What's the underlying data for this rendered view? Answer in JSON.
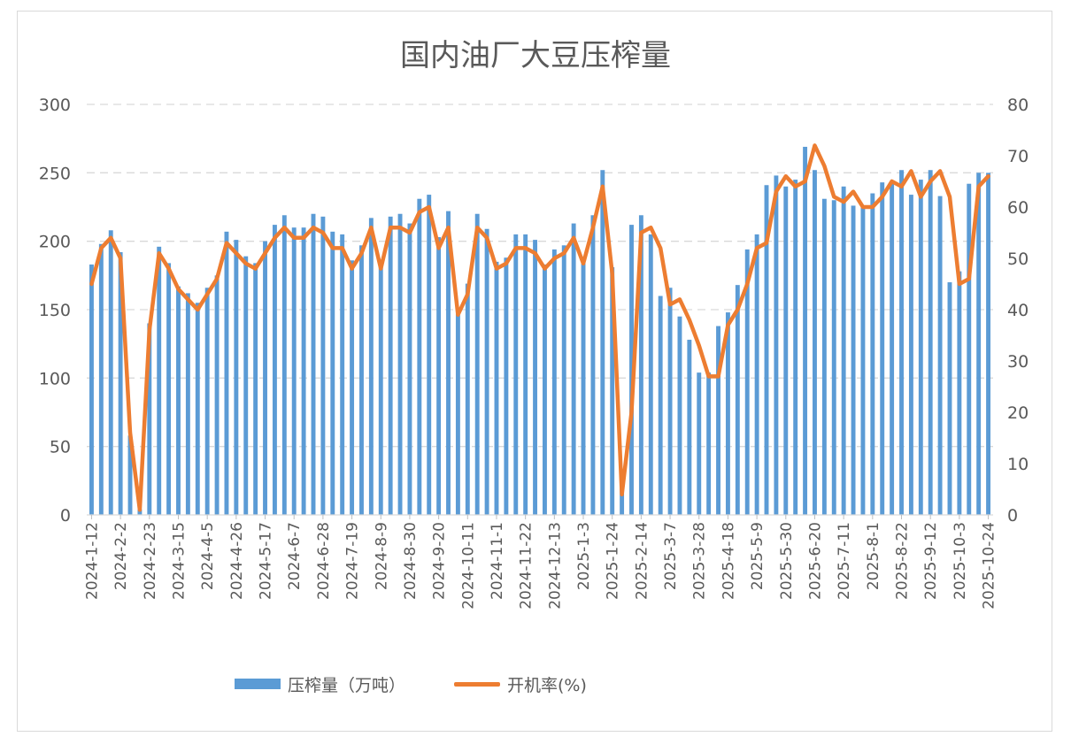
{
  "chart_data": {
    "type": "bar+line",
    "title": "国内油厂大豆压榨量",
    "categories": [
      "2024-1-12",
      "2024-1-19",
      "2024-1-26",
      "2024-2-2",
      "2024-2-9",
      "2024-2-16",
      "2024-2-23",
      "2024-3-1",
      "2024-3-8",
      "2024-3-15",
      "2024-3-22",
      "2024-3-29",
      "2024-4-5",
      "2024-4-12",
      "2024-4-19",
      "2024-4-26",
      "2024-5-3",
      "2024-5-10",
      "2024-5-17",
      "2024-5-24",
      "2024-5-31",
      "2024-6-7",
      "2024-6-14",
      "2024-6-21",
      "2024-6-28",
      "2024-7-5",
      "2024-7-12",
      "2024-7-19",
      "2024-7-26",
      "2024-8-2",
      "2024-8-9",
      "2024-8-16",
      "2024-8-23",
      "2024-8-30",
      "2024-9-6",
      "2024-9-13",
      "2024-9-20",
      "2024-9-27",
      "2024-10-4",
      "2024-10-11",
      "2024-10-18",
      "2024-10-25",
      "2024-11-1",
      "2024-11-8",
      "2024-11-15",
      "2024-11-22",
      "2024-11-29",
      "2024-12-6",
      "2024-12-13",
      "2024-12-20",
      "2024-12-27",
      "2025-1-3",
      "2025-1-10",
      "2025-1-17",
      "2025-1-24",
      "2025-1-31",
      "2025-2-7",
      "2025-2-14",
      "2025-2-21",
      "2025-2-28",
      "2025-3-7",
      "2025-3-14",
      "2025-3-21",
      "2025-3-28",
      "2025-4-4",
      "2025-4-11",
      "2025-4-18",
      "2025-4-25",
      "2025-5-2",
      "2025-5-9",
      "2025-5-16",
      "2025-5-23",
      "2025-5-30",
      "2025-6-6",
      "2025-6-13",
      "2025-6-20",
      "2025-6-27",
      "2025-7-4",
      "2025-7-11",
      "2025-7-18",
      "2025-7-25",
      "2025-8-1",
      "2025-8-8",
      "2025-8-15",
      "2025-8-22",
      "2025-8-29",
      "2025-9-5",
      "2025-9-12",
      "2025-9-19",
      "2025-9-26",
      "2025-10-3",
      "2025-10-10",
      "2025-10-17",
      "2025-10-24"
    ],
    "xtick_labels": [
      "2024-1-12",
      "2024-2-2",
      "2024-2-23",
      "2024-3-15",
      "2024-4-5",
      "2024-4-26",
      "2024-5-17",
      "2024-6-7",
      "2024-6-28",
      "2024-7-19",
      "2024-8-9",
      "2024-8-30",
      "2024-9-20",
      "2024-10-11",
      "2024-11-1",
      "2024-11-22",
      "2024-12-13",
      "2025-1-3",
      "2025-1-24",
      "2025-2-14",
      "2025-3-7",
      "2025-3-28",
      "2025-4-18",
      "2025-5-9",
      "2025-5-30",
      "2025-6-20",
      "2025-7-11",
      "2025-8-1",
      "2025-8-22",
      "2025-9-12",
      "2025-10-3",
      "2025-10-24"
    ],
    "series": [
      {
        "name": "压榨量（万吨）",
        "type": "bar",
        "axis": "left",
        "color": "#5b9bd5",
        "values": [
          183,
          198,
          208,
          192,
          58,
          4,
          140,
          196,
          184,
          167,
          162,
          155,
          166,
          175,
          207,
          201,
          189,
          184,
          200,
          212,
          219,
          210,
          210,
          220,
          218,
          207,
          205,
          186,
          197,
          217,
          186,
          218,
          220,
          213,
          231,
          234,
          203,
          222,
          147,
          169,
          220,
          209,
          185,
          188,
          205,
          205,
          201,
          183,
          194,
          197,
          213,
          187,
          219,
          252,
          181,
          20,
          212,
          219,
          205,
          160,
          166,
          145,
          128,
          104,
          104,
          138,
          148,
          168,
          194,
          205,
          241,
          248,
          240,
          245,
          269,
          252,
          231,
          230,
          240,
          226,
          225,
          235,
          243,
          242,
          252,
          234,
          245,
          252,
          233,
          170,
          178,
          242,
          250,
          250
        ]
      },
      {
        "name": "开机率(%)",
        "type": "line",
        "axis": "right",
        "color": "#ed7d31",
        "values": [
          45,
          52,
          54,
          50,
          16,
          1,
          36,
          51,
          48,
          44,
          42,
          40,
          43,
          46,
          53,
          51,
          49,
          48,
          51,
          54,
          56,
          54,
          54,
          56,
          55,
          52,
          52,
          48,
          51,
          56,
          48,
          56,
          56,
          55,
          59,
          60,
          52,
          56,
          39,
          43,
          56,
          54,
          48,
          49,
          52,
          52,
          51,
          48,
          50,
          51,
          54,
          49,
          56,
          64,
          47,
          4,
          20,
          55,
          56,
          52,
          41,
          42,
          38,
          33,
          27,
          27,
          37,
          40,
          45,
          52,
          53,
          63,
          66,
          64,
          65,
          72,
          68,
          62,
          61,
          63,
          60,
          60,
          62,
          65,
          64,
          67,
          62,
          65,
          67,
          62,
          45,
          46,
          64,
          66
        ]
      }
    ],
    "yleft_lim": [
      0,
      300
    ],
    "yleft_ticks": [
      "0",
      "50",
      "100",
      "150",
      "200",
      "250",
      "300"
    ],
    "yright_lim": [
      0,
      80
    ],
    "yright_ticks": [
      "0",
      "10",
      "20",
      "30",
      "40",
      "50",
      "60",
      "70",
      "80"
    ],
    "grid": true,
    "legend_position": "bottom"
  }
}
